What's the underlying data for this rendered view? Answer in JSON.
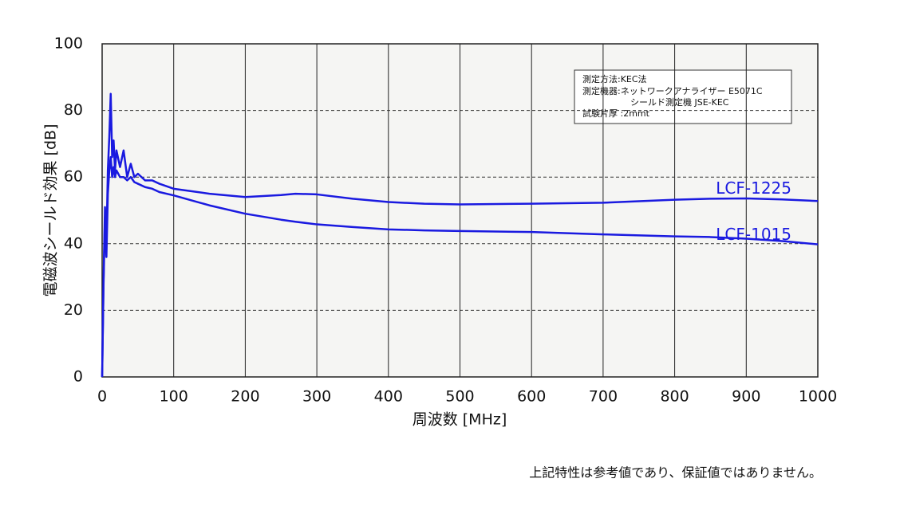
{
  "chart_data": {
    "type": "line",
    "ylabel": "電磁波シールド効果 [dB]",
    "xlabel": "周波数 [MHz]",
    "x": [
      0,
      2,
      4,
      6,
      8,
      10,
      12,
      14,
      16,
      18,
      20,
      25,
      30,
      35,
      40,
      45,
      50,
      60,
      70,
      80,
      100,
      150,
      200,
      250,
      270,
      300,
      350,
      400,
      450,
      500,
      600,
      700,
      800,
      850,
      900,
      950,
      1000
    ],
    "series": [
      {
        "name": "LCF-1225",
        "color": "#1a1ae0",
        "values": [
          0,
          30,
          51,
          40,
          62,
          72,
          85,
          66,
          71,
          62,
          68,
          63,
          68,
          60,
          64,
          60,
          61,
          59,
          59,
          58,
          56.5,
          55,
          54,
          54.6,
          55,
          54.8,
          53.5,
          52.5,
          52,
          51.8,
          52,
          52.3,
          53.2,
          53.5,
          53.6,
          53.3,
          52.8
        ]
      },
      {
        "name": "LCF-1015",
        "color": "#1a1ae0",
        "values": [
          0,
          28,
          48,
          36,
          55,
          62,
          66,
          60,
          63,
          60,
          62,
          60,
          60,
          59,
          60,
          58.5,
          58,
          57,
          56.5,
          55.5,
          54.5,
          51.5,
          49,
          47.2,
          46.6,
          45.8,
          45,
          44.3,
          44,
          43.8,
          43.5,
          42.8,
          42.2,
          42,
          41.5,
          40.8,
          39.8
        ]
      }
    ],
    "xlim": [
      0,
      1000
    ],
    "xticks": [
      0,
      100,
      200,
      300,
      400,
      500,
      600,
      700,
      800,
      900,
      1000
    ],
    "ylim": [
      0,
      100
    ],
    "yticks": [
      0,
      20,
      40,
      60,
      80,
      100
    ],
    "grid": true,
    "annotation": [
      "測定方法:KEC法",
      "測定機器:ネットワークアナライザー E5071C",
      "シールド測定機 JSE-KEC",
      "試験片厚 :2mmt"
    ],
    "footnote": "上記特性は参考値であり、保証値ではありません。"
  }
}
